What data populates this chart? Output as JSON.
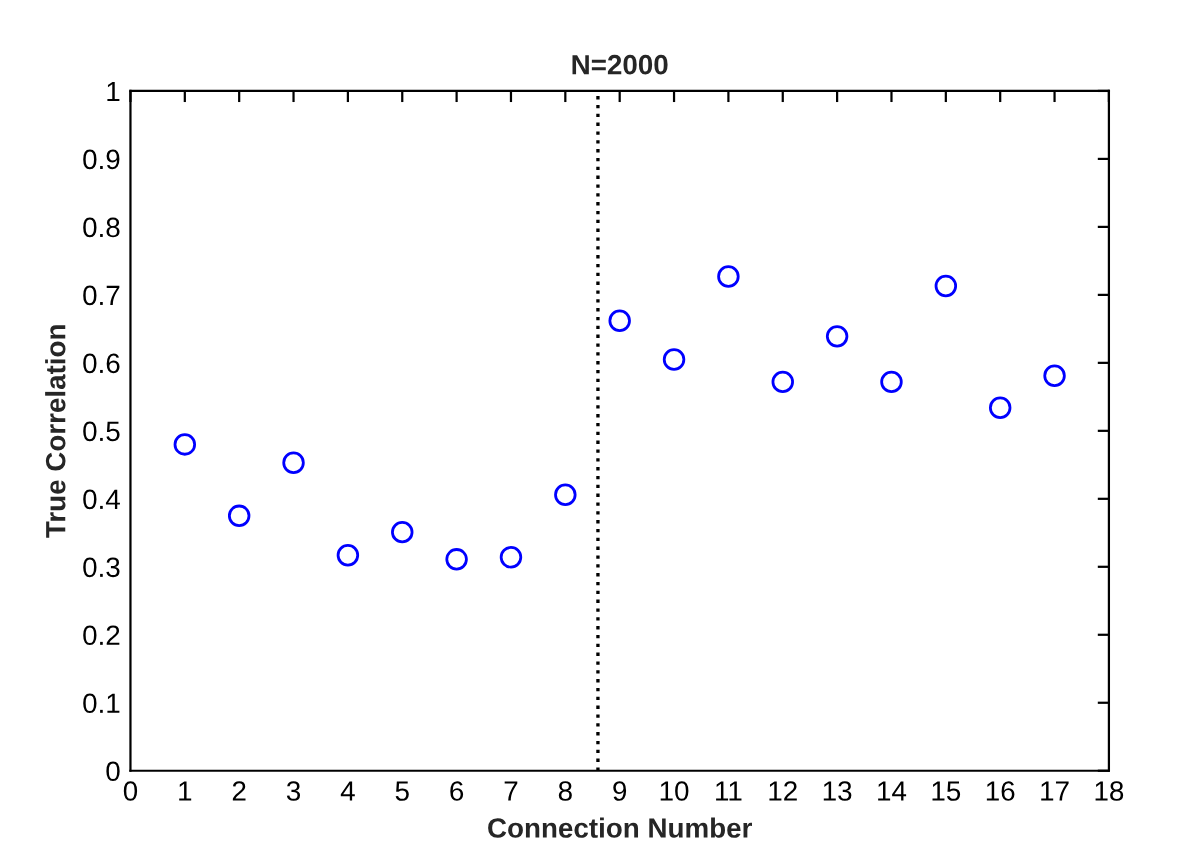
{
  "chart_data": {
    "type": "scatter",
    "title": "N=2000",
    "xlabel": "Connection Number",
    "ylabel": "True Correlation",
    "x": [
      1,
      2,
      3,
      4,
      5,
      6,
      7,
      8,
      9,
      10,
      11,
      12,
      13,
      14,
      15,
      16,
      17
    ],
    "series": [
      {
        "color": "#0000ff",
        "values": [
          0.48,
          0.375,
          0.453,
          0.317,
          0.351,
          0.311,
          0.314,
          0.406,
          0.662,
          0.605,
          0.727,
          0.572,
          0.639,
          0.572,
          0.713,
          0.534,
          0.581
        ]
      }
    ],
    "marker": "circle",
    "xlim": [
      0,
      18
    ],
    "xticks": [
      0,
      1,
      2,
      3,
      4,
      5,
      6,
      7,
      8,
      9,
      10,
      11,
      12,
      13,
      14,
      15,
      16,
      17,
      18
    ],
    "ylim": [
      0,
      1
    ],
    "yticks": [
      0,
      0.1,
      0.2,
      0.3,
      0.4,
      0.5,
      0.6,
      0.7,
      0.8,
      0.9,
      1
    ],
    "ref_lines": [
      {
        "axis": "x",
        "value": 8.6,
        "color": "#000000",
        "line_style": "dotted"
      }
    ],
    "grid": false
  }
}
